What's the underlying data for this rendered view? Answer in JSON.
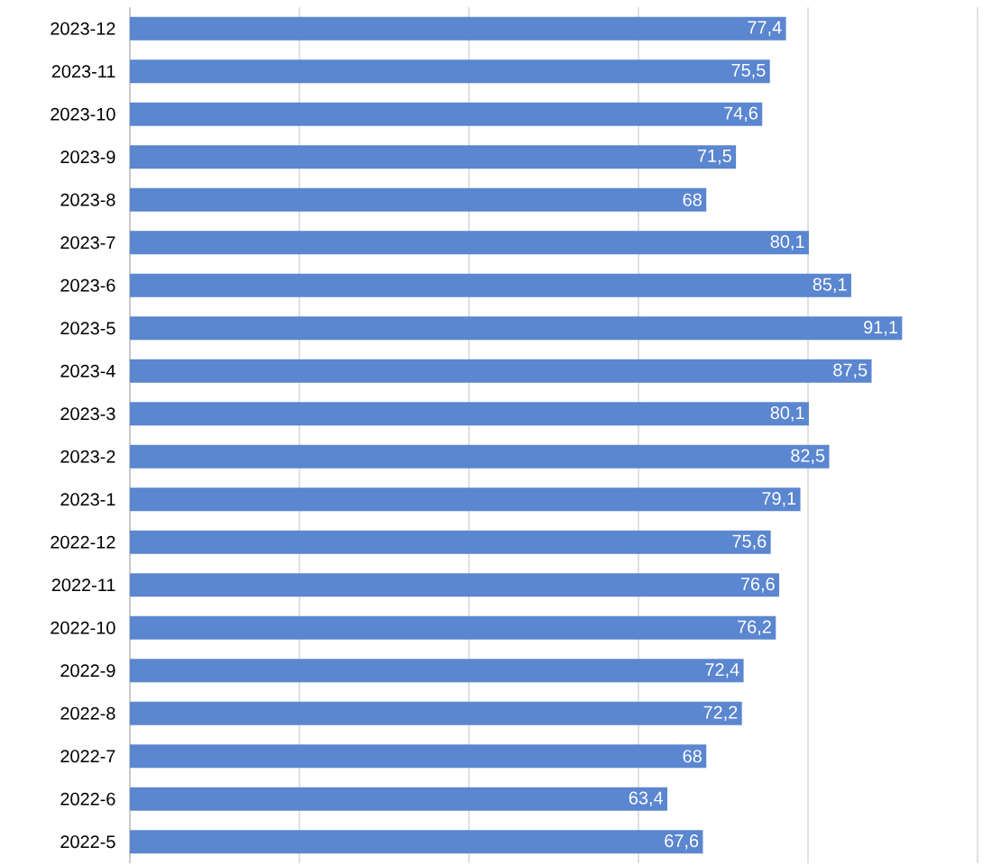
{
  "chart_data": {
    "type": "bar",
    "orientation": "horizontal",
    "categories": [
      "2023-12",
      "2023-11",
      "2023-10",
      "2023-9",
      "2023-8",
      "2023-7",
      "2023-6",
      "2023-5",
      "2023-4",
      "2023-3",
      "2023-2",
      "2023-1",
      "2022-12",
      "2022-11",
      "2022-10",
      "2022-9",
      "2022-8",
      "2022-7",
      "2022-6",
      "2022-5"
    ],
    "values": [
      77.4,
      75.5,
      74.6,
      71.5,
      68,
      80.1,
      85.1,
      91.1,
      87.5,
      80.1,
      82.5,
      79.1,
      75.6,
      76.6,
      76.2,
      72.4,
      72.2,
      68,
      63.4,
      67.6
    ],
    "value_labels": [
      "77,4",
      "75,5",
      "74,6",
      "71,5",
      "68",
      "80,1",
      "85,1",
      "91,1",
      "87,5",
      "80,1",
      "82,5",
      "79,1",
      "75,6",
      "76,6",
      "76,2",
      "72,4",
      "72,2",
      "68",
      "63,4",
      "67,6"
    ],
    "color": "#5b86d0",
    "xlim": [
      0,
      100
    ],
    "xticks": [
      {
        "value": 0,
        "label": null
      },
      {
        "value": 20,
        "label": null
      },
      {
        "value": 40,
        "label": null
      },
      {
        "value": 60,
        "label": null
      },
      {
        "value": 80,
        "label": null
      },
      {
        "value": 100,
        "label": null
      }
    ],
    "grid": "x",
    "tick_labels": "y"
  }
}
